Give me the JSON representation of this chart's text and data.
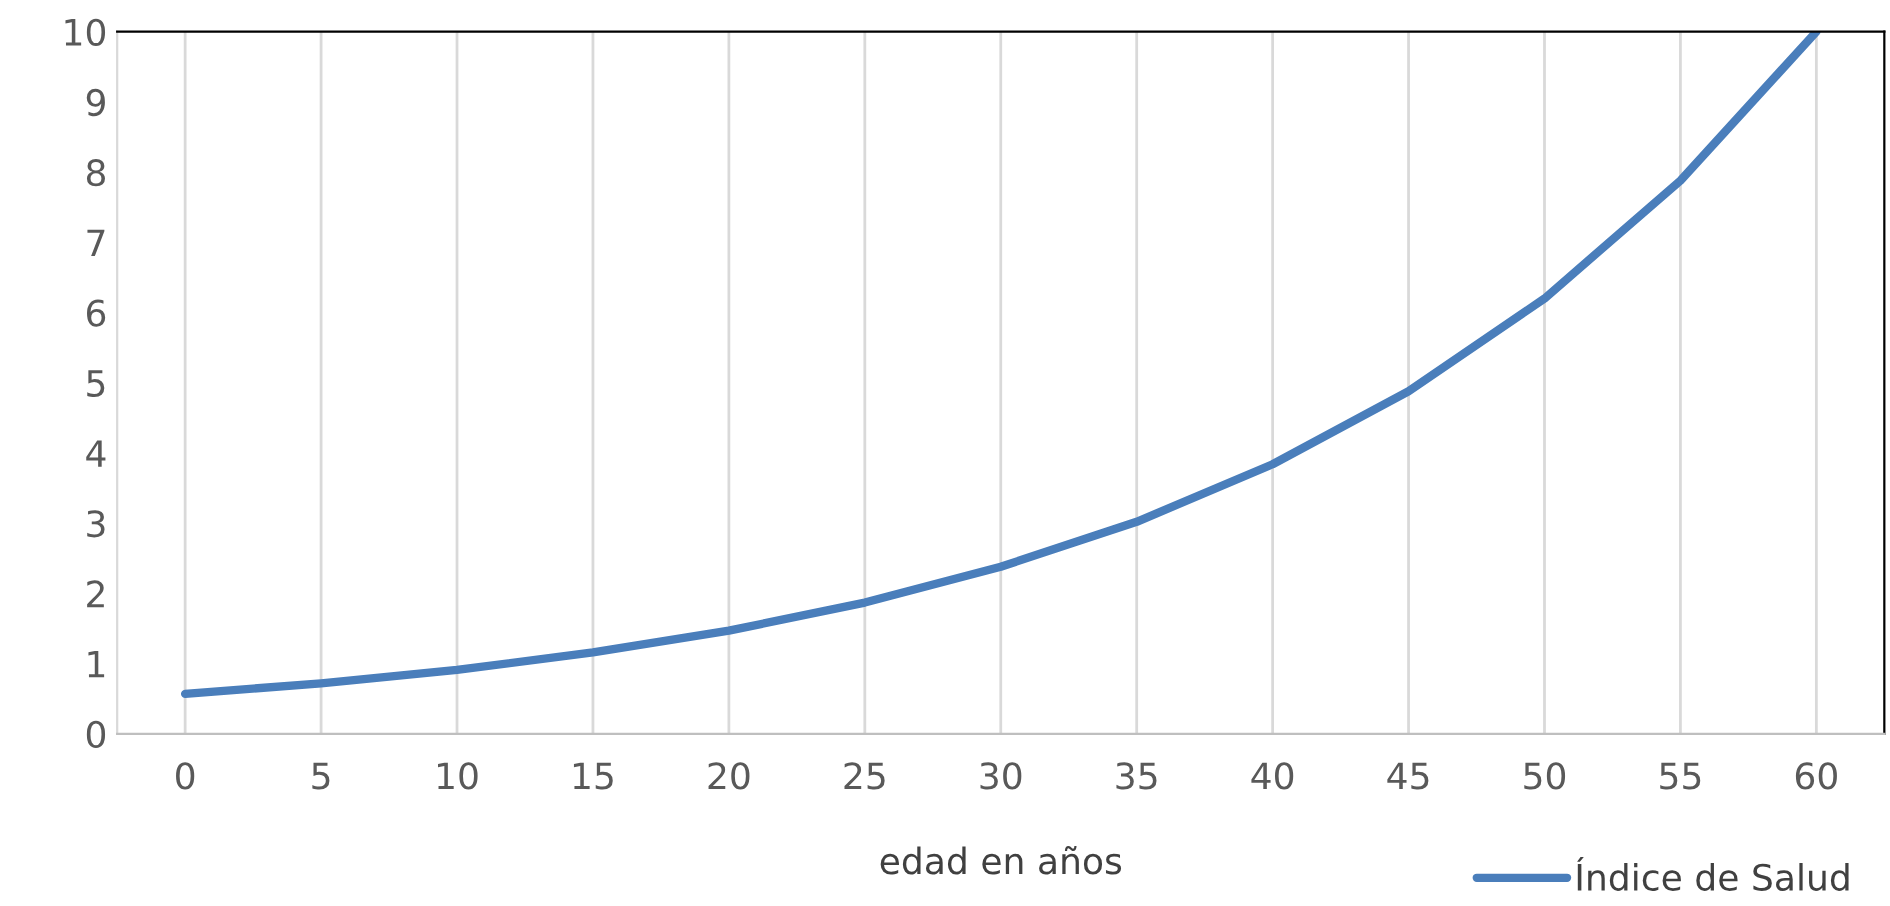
{
  "chart_data": {
    "type": "line",
    "xlabel": "edad en años",
    "categories": [
      "0",
      "5",
      "10",
      "15",
      "20",
      "25",
      "30",
      "35",
      "40",
      "45",
      "50",
      "55",
      "60"
    ],
    "series": [
      {
        "name": "Índice de Salud",
        "color": "#4a7ebb",
        "values": [
          0.57,
          0.72,
          0.91,
          1.16,
          1.47,
          1.87,
          2.38,
          3.02,
          3.84,
          4.88,
          6.2,
          7.88,
          10.0
        ]
      }
    ],
    "ylim": [
      0,
      10
    ],
    "yticks": [
      0,
      1,
      2,
      3,
      4,
      5,
      6,
      7,
      8,
      9,
      10
    ],
    "grid": "x",
    "legend": "bottom right",
    "marker": "none",
    "line_style": "solid"
  }
}
